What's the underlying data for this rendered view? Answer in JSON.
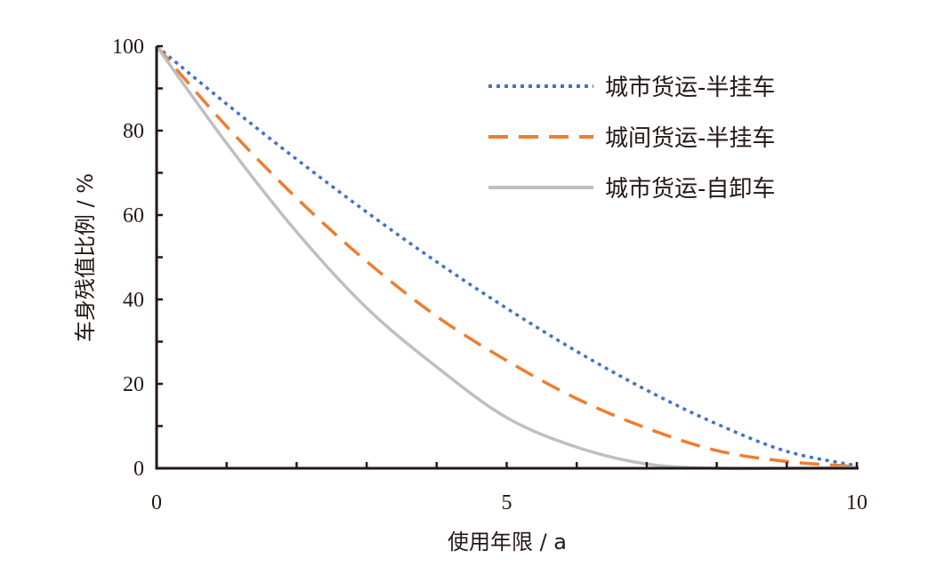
{
  "chart_data": {
    "type": "line",
    "title": "",
    "xlabel": "使用年限 / a",
    "ylabel": "车身残值比例 / %",
    "xlim": [
      0,
      10
    ],
    "ylim": [
      0,
      100
    ],
    "xticks": [
      0,
      5,
      10
    ],
    "xtick_labels": [
      "0",
      "5",
      "10"
    ],
    "yticks": [
      0,
      20,
      40,
      60,
      80,
      100
    ],
    "ytick_labels": [
      "0",
      "20",
      "40",
      "60",
      "80",
      "100"
    ],
    "x_minor_step": 1,
    "y_minor_step": 10,
    "grid": false,
    "legend_position": "top-right",
    "x": [
      0,
      1,
      2,
      3,
      4,
      5,
      6,
      7,
      8,
      9,
      10
    ],
    "series": [
      {
        "name": "城市货运-半挂车",
        "color": "#4472C4",
        "style": "dotted",
        "values": [
          100,
          86.3,
          73.2,
          60.7,
          48.9,
          37.9,
          27.7,
          18.5,
          10.5,
          4.0,
          0.6
        ]
      },
      {
        "name": "城间货运-半挂车",
        "color": "#ED7D31",
        "style": "dashed",
        "values": [
          100,
          81,
          64,
          49,
          36,
          25.5,
          16.5,
          9.5,
          4.2,
          1.6,
          0.4
        ]
      },
      {
        "name": "城市货运-自卸车",
        "color": "#BFBFBF",
        "style": "solid",
        "values": [
          100,
          77,
          56,
          38,
          24,
          12,
          5,
          1,
          0,
          0,
          0.2
        ]
      }
    ]
  }
}
